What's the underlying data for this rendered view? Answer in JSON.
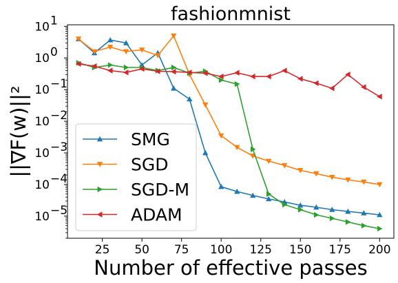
{
  "chart_data": {
    "type": "line",
    "title": "fashionmnist",
    "xlabel": "Number of effective passes",
    "ylabel": "||∇F(w)||²",
    "yscale": "log",
    "xlim": [
      3,
      209
    ],
    "ylim_exponents": [
      -5.7,
      1.05
    ],
    "x_ticks": [
      25,
      50,
      75,
      100,
      125,
      150,
      175,
      200
    ],
    "y_tick_exponents": [
      -5,
      -4,
      -3,
      -2,
      -1,
      0,
      1
    ],
    "legend_position": "lower-left",
    "x": [
      10,
      20,
      30,
      40,
      50,
      60,
      70,
      80,
      90,
      100,
      110,
      120,
      130,
      140,
      150,
      160,
      170,
      180,
      190,
      200
    ],
    "series": [
      {
        "name": "SMG",
        "color": "#1f77b4",
        "marker": "triangle-up",
        "values": [
          4.0,
          1.45,
          3.7,
          3.0,
          0.6,
          1.45,
          0.11,
          0.05,
          0.001,
          8.5e-05,
          6e-05,
          4.5e-05,
          3.5e-05,
          2.8e-05,
          2.2e-05,
          1.9e-05,
          1.6e-05,
          1.4e-05,
          1.25e-05,
          1.1e-05
        ]
      },
      {
        "name": "SGD",
        "color": "#ff7f0e",
        "marker": "triangle-down",
        "values": [
          4.0,
          1.6,
          2.2,
          1.6,
          1.8,
          1.2,
          5.0,
          0.3,
          0.033,
          0.0035,
          0.0015,
          0.0008,
          0.00055,
          0.0004,
          0.00028,
          0.00022,
          0.00017,
          0.00014,
          0.00012,
          0.0001
        ]
      },
      {
        "name": "SGD-M",
        "color": "#2ca02c",
        "marker": "triangle-right",
        "values": [
          0.7,
          0.5,
          0.6,
          0.5,
          0.5,
          0.4,
          0.5,
          0.33,
          0.38,
          0.2,
          0.15,
          0.0013,
          5e-05,
          2.3e-05,
          1.6e-05,
          1.1e-05,
          8.5e-06,
          6.5e-06,
          5e-06,
          4e-06
        ]
      },
      {
        "name": "ADAM",
        "color": "#d62728",
        "marker": "triangle-left",
        "values": [
          0.65,
          0.55,
          0.4,
          0.35,
          0.45,
          0.38,
          0.37,
          0.35,
          0.33,
          0.26,
          0.34,
          0.26,
          0.26,
          0.4,
          0.22,
          0.16,
          0.11,
          0.3,
          0.12,
          0.06
        ]
      }
    ]
  }
}
